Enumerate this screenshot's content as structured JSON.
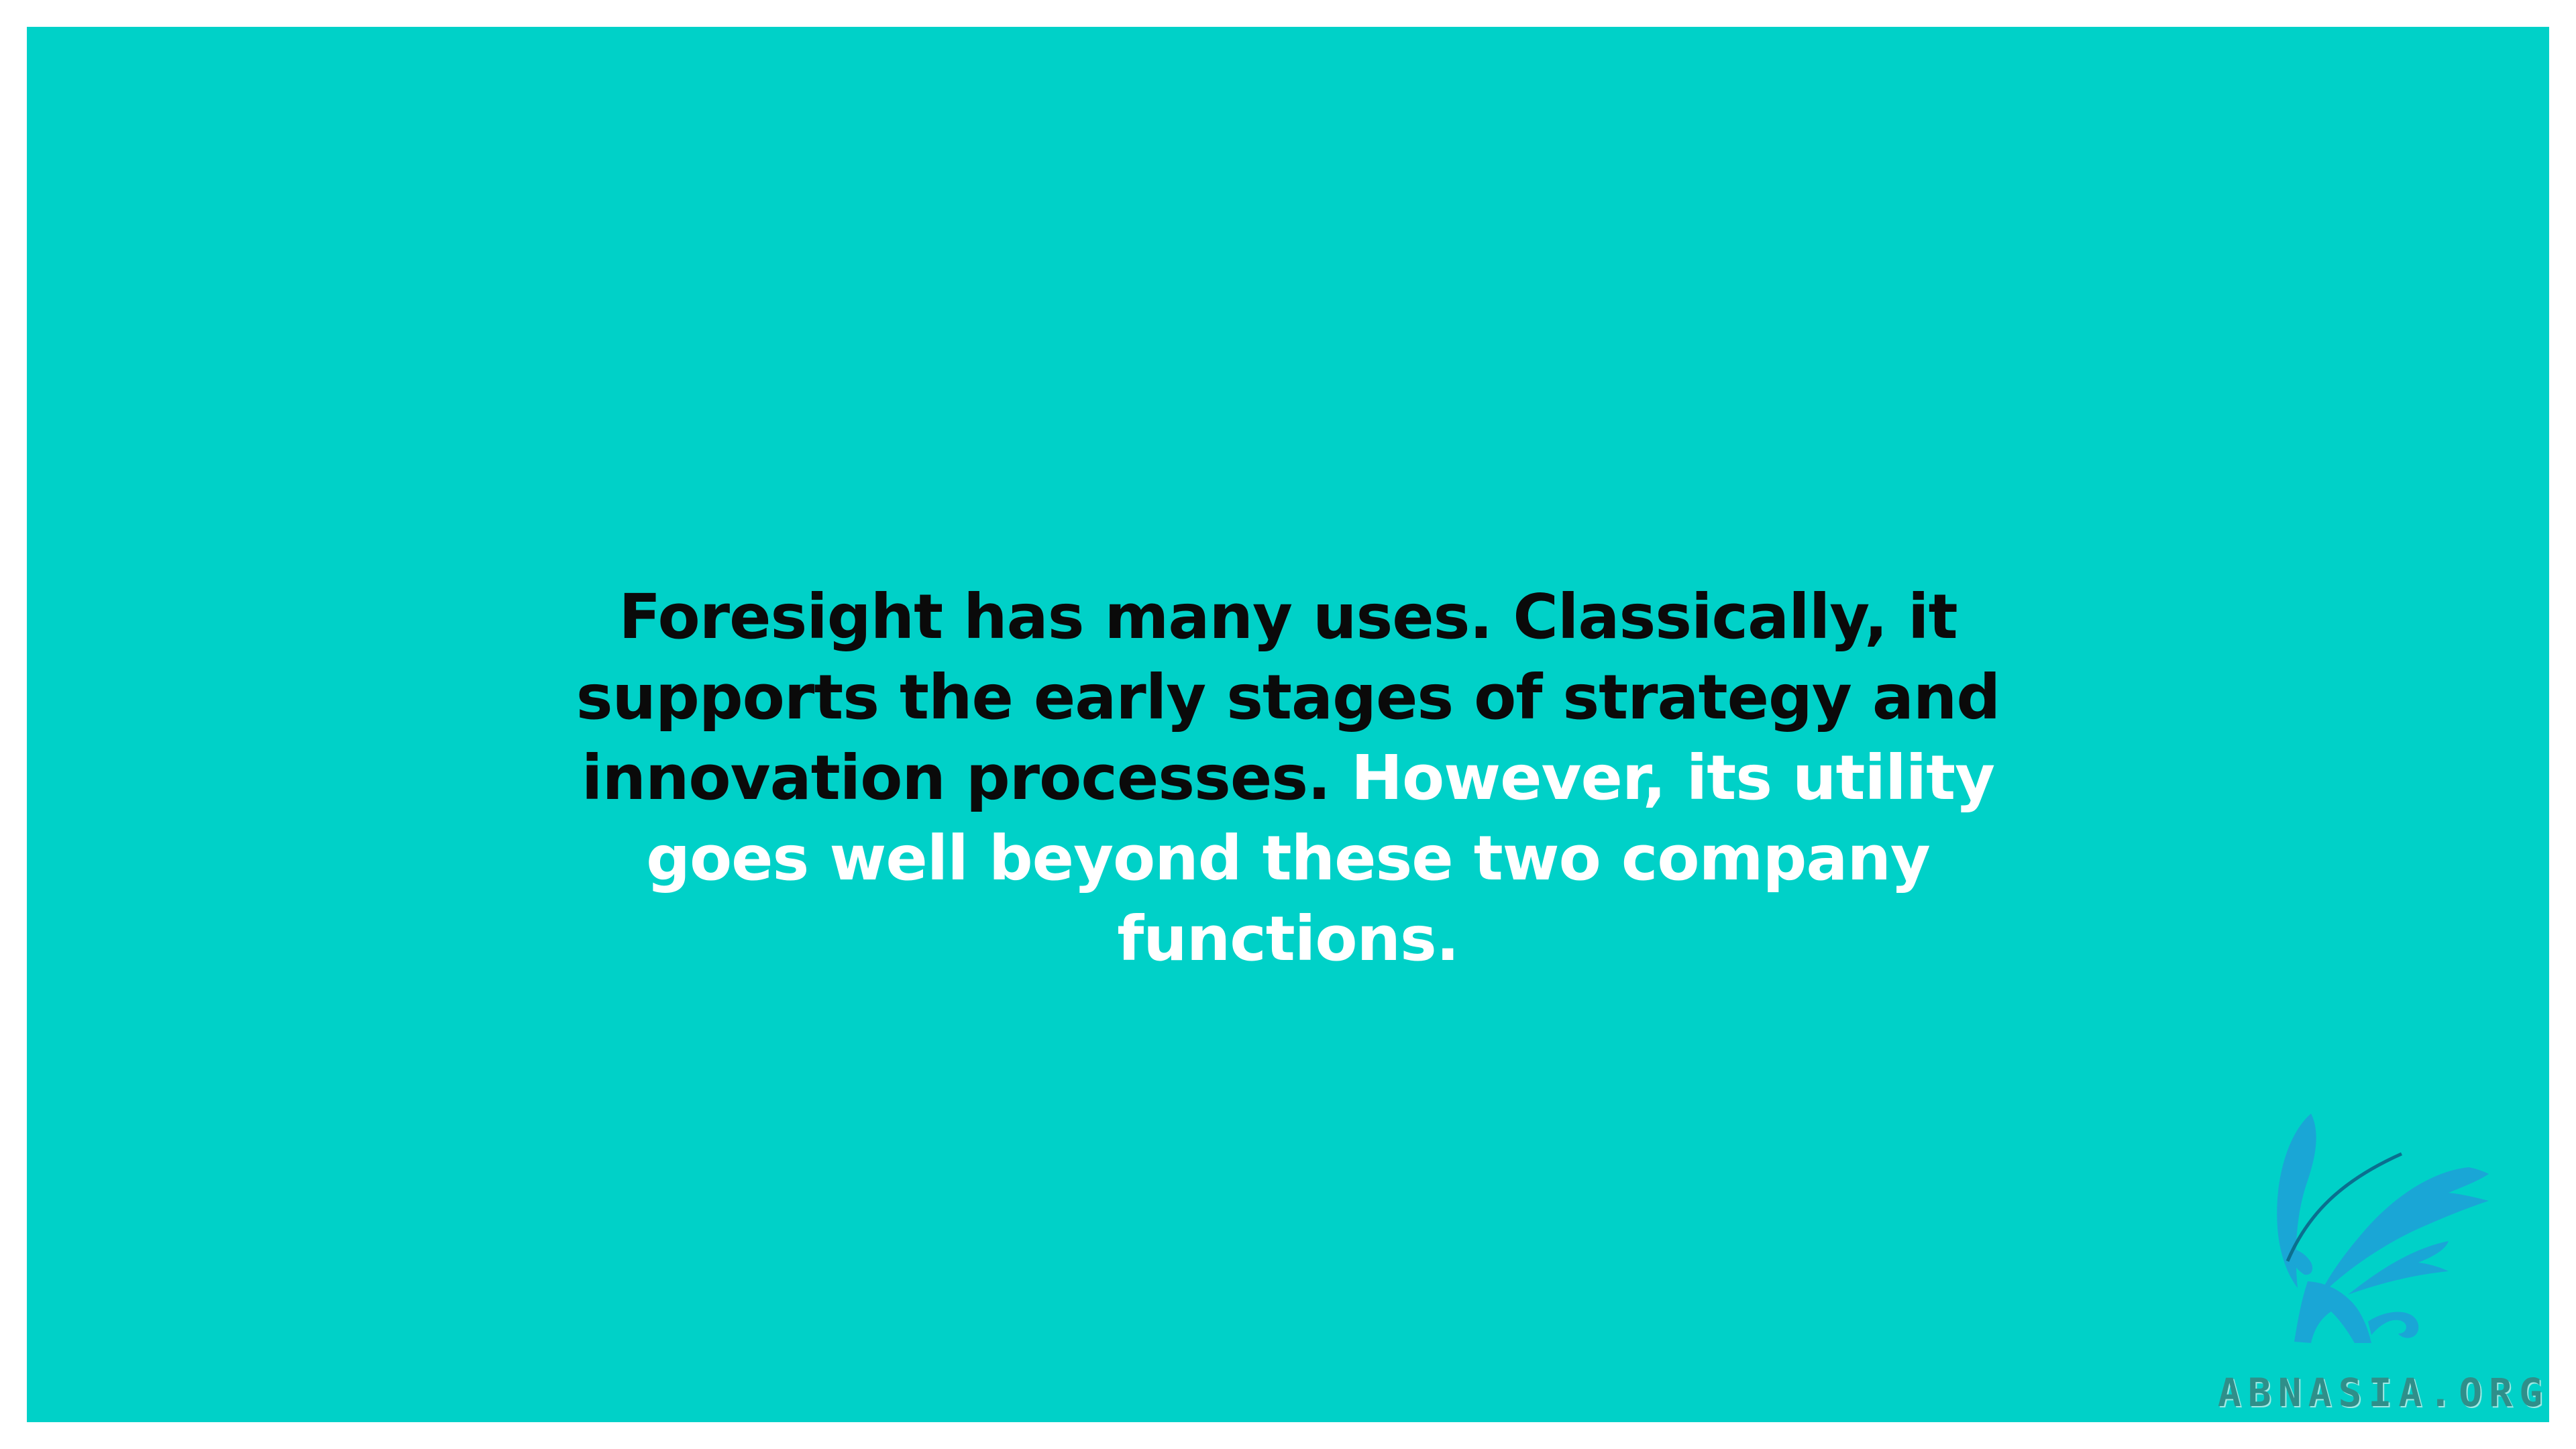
{
  "slide": {
    "text_dark": "Foresight has many uses. Classically, it supports the early stages of strategy and innovation processes.",
    "text_light": "However, its utility goes well beyond these two company functions."
  },
  "watermark": {
    "label": "ABNASIA.ORG",
    "icon": "griffin-logo-icon"
  },
  "colors": {
    "background": "#00d1c8",
    "text_dark": "#0a0a0a",
    "text_light": "#ffffff",
    "logo": "#1aa6d6"
  }
}
